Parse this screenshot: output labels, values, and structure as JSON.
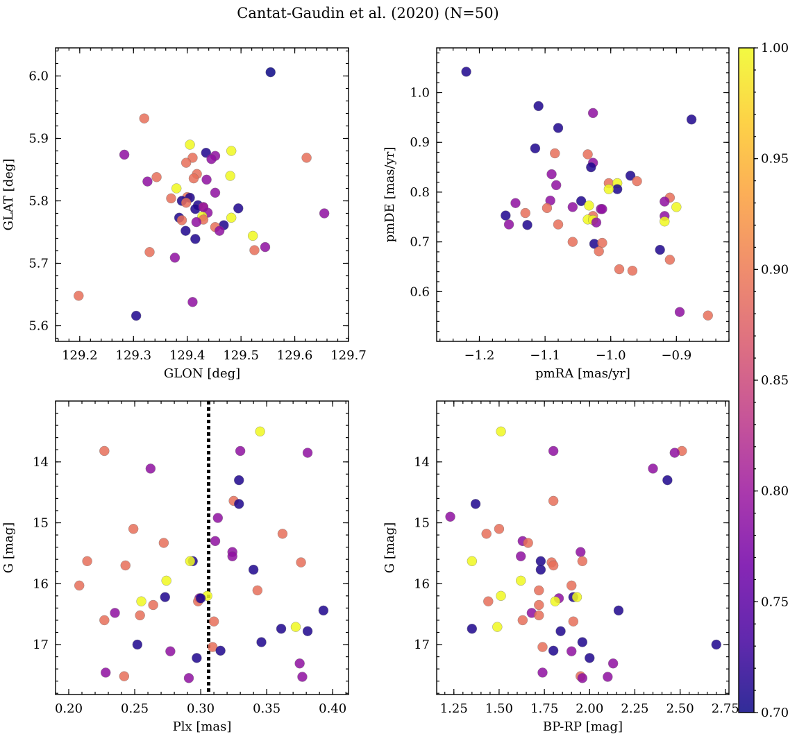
{
  "figure": {
    "title": "Cantat-Gaudin et al. (2020) (N=50)",
    "colormap": [
      "#0d0887",
      "#46039f",
      "#7201a8",
      "#9c179e",
      "#bd3786",
      "#d8576b",
      "#ed7953",
      "#fb9f3a",
      "#fdca26",
      "#f0f921"
    ]
  },
  "colorbar": {
    "min": 0.7,
    "max": 1.0,
    "ticks": [
      "0.70",
      "0.75",
      "0.80",
      "0.85",
      "0.90",
      "0.95",
      "1.00"
    ]
  },
  "chart_data": [
    {
      "type": "scatter",
      "xlabel": "GLON [deg]",
      "ylabel": "GLAT [deg]",
      "xlim": [
        129.155,
        129.7
      ],
      "ylim": [
        5.575,
        6.045
      ],
      "xticks": [
        "129.2",
        "129.3",
        "129.4",
        "129.5",
        "129.6",
        "129.7"
      ],
      "yticks": [
        "5.6",
        "5.7",
        "5.8",
        "5.9",
        "6.0"
      ],
      "y_inverted": false,
      "points": [
        {
          "x": 129.555,
          "y": 6.006,
          "c": 0.7
        },
        {
          "x": 129.32,
          "y": 5.932,
          "c": 0.89
        },
        {
          "x": 129.283,
          "y": 5.874,
          "c": 0.79
        },
        {
          "x": 129.435,
          "y": 5.877,
          "c": 0.71
        },
        {
          "x": 129.405,
          "y": 5.89,
          "c": 1.0
        },
        {
          "x": 129.482,
          "y": 5.88,
          "c": 1.0
        },
        {
          "x": 129.452,
          "y": 5.872,
          "c": 0.79
        },
        {
          "x": 129.445,
          "y": 5.867,
          "c": 0.79
        },
        {
          "x": 129.41,
          "y": 5.869,
          "c": 0.89
        },
        {
          "x": 129.398,
          "y": 5.861,
          "c": 0.89
        },
        {
          "x": 129.622,
          "y": 5.869,
          "c": 0.89
        },
        {
          "x": 129.343,
          "y": 5.838,
          "c": 0.89
        },
        {
          "x": 129.326,
          "y": 5.831,
          "c": 0.79
        },
        {
          "x": 129.418,
          "y": 5.843,
          "c": 0.89
        },
        {
          "x": 129.412,
          "y": 5.836,
          "c": 0.89
        },
        {
          "x": 129.436,
          "y": 5.834,
          "c": 0.79
        },
        {
          "x": 129.48,
          "y": 5.84,
          "c": 1.0
        },
        {
          "x": 129.38,
          "y": 5.82,
          "c": 1.0
        },
        {
          "x": 129.452,
          "y": 5.813,
          "c": 0.79
        },
        {
          "x": 129.37,
          "y": 5.804,
          "c": 0.89
        },
        {
          "x": 129.4,
          "y": 5.806,
          "c": 0.89
        },
        {
          "x": 129.405,
          "y": 5.805,
          "c": 0.71
        },
        {
          "x": 129.39,
          "y": 5.8,
          "c": 0.71
        },
        {
          "x": 129.398,
          "y": 5.797,
          "c": 0.89
        },
        {
          "x": 129.42,
          "y": 5.793,
          "c": 0.71
        },
        {
          "x": 129.43,
          "y": 5.79,
          "c": 0.89
        },
        {
          "x": 129.415,
          "y": 5.787,
          "c": 0.71
        },
        {
          "x": 129.495,
          "y": 5.788,
          "c": 0.71
        },
        {
          "x": 129.655,
          "y": 5.78,
          "c": 0.79
        },
        {
          "x": 129.438,
          "y": 5.781,
          "c": 0.79
        },
        {
          "x": 129.428,
          "y": 5.775,
          "c": 1.0
        },
        {
          "x": 129.385,
          "y": 5.773,
          "c": 0.71
        },
        {
          "x": 129.482,
          "y": 5.773,
          "c": 1.0
        },
        {
          "x": 129.39,
          "y": 5.769,
          "c": 0.89
        },
        {
          "x": 129.43,
          "y": 5.77,
          "c": 0.89
        },
        {
          "x": 129.417,
          "y": 5.766,
          "c": 0.79
        },
        {
          "x": 129.468,
          "y": 5.761,
          "c": 0.71
        },
        {
          "x": 129.452,
          "y": 5.758,
          "c": 0.89
        },
        {
          "x": 129.46,
          "y": 5.752,
          "c": 0.79
        },
        {
          "x": 129.397,
          "y": 5.752,
          "c": 0.71
        },
        {
          "x": 129.522,
          "y": 5.744,
          "c": 1.0
        },
        {
          "x": 129.415,
          "y": 5.739,
          "c": 0.71
        },
        {
          "x": 129.545,
          "y": 5.726,
          "c": 0.79
        },
        {
          "x": 129.525,
          "y": 5.721,
          "c": 0.89
        },
        {
          "x": 129.33,
          "y": 5.718,
          "c": 0.89
        },
        {
          "x": 129.377,
          "y": 5.709,
          "c": 0.79
        },
        {
          "x": 129.198,
          "y": 5.648,
          "c": 0.89
        },
        {
          "x": 129.41,
          "y": 5.638,
          "c": 0.79
        },
        {
          "x": 129.305,
          "y": 5.616,
          "c": 0.71
        },
        {
          "x": 129.43,
          "y": 5.79,
          "c": 0.79
        }
      ]
    },
    {
      "type": "scatter",
      "xlabel": "pmRA [mas/yr]",
      "ylabel": "pmDE [mas/yr]",
      "xlim": [
        -1.265,
        -0.82
      ],
      "ylim": [
        0.5,
        1.09
      ],
      "xticks": [
        "−1.2",
        "−1.1",
        "−1.0",
        "−0.9"
      ],
      "yticks": [
        "0.6",
        "0.7",
        "0.8",
        "0.9",
        "1.0"
      ],
      "y_inverted": false,
      "points": [
        {
          "x": -1.22,
          "y": 1.042,
          "c": 0.71
        },
        {
          "x": -1.11,
          "y": 0.973,
          "c": 0.71
        },
        {
          "x": -1.027,
          "y": 0.959,
          "c": 0.79
        },
        {
          "x": -0.877,
          "y": 0.946,
          "c": 0.71
        },
        {
          "x": -1.08,
          "y": 0.929,
          "c": 0.71
        },
        {
          "x": -1.115,
          "y": 0.888,
          "c": 0.71
        },
        {
          "x": -1.085,
          "y": 0.878,
          "c": 0.89
        },
        {
          "x": -1.035,
          "y": 0.876,
          "c": 0.89
        },
        {
          "x": -1.027,
          "y": 0.859,
          "c": 0.79
        },
        {
          "x": -1.03,
          "y": 0.85,
          "c": 0.71
        },
        {
          "x": -1.09,
          "y": 0.836,
          "c": 0.79
        },
        {
          "x": -0.97,
          "y": 0.833,
          "c": 0.71
        },
        {
          "x": -0.96,
          "y": 0.822,
          "c": 0.89
        },
        {
          "x": -1.003,
          "y": 0.818,
          "c": 0.89
        },
        {
          "x": -0.99,
          "y": 0.818,
          "c": 1.0
        },
        {
          "x": -1.083,
          "y": 0.814,
          "c": 0.79
        },
        {
          "x": -0.99,
          "y": 0.806,
          "c": 0.71
        },
        {
          "x": -1.003,
          "y": 0.806,
          "c": 1.0
        },
        {
          "x": -0.91,
          "y": 0.789,
          "c": 0.89
        },
        {
          "x": -1.092,
          "y": 0.783,
          "c": 0.79
        },
        {
          "x": -0.918,
          "y": 0.781,
          "c": 0.79
        },
        {
          "x": -1.045,
          "y": 0.782,
          "c": 0.71
        },
        {
          "x": -1.145,
          "y": 0.778,
          "c": 0.79
        },
        {
          "x": -1.033,
          "y": 0.773,
          "c": 1.0
        },
        {
          "x": -1.058,
          "y": 0.77,
          "c": 0.79
        },
        {
          "x": -0.9,
          "y": 0.77,
          "c": 1.0
        },
        {
          "x": -1.097,
          "y": 0.768,
          "c": 0.89
        },
        {
          "x": -1.015,
          "y": 0.766,
          "c": 0.79
        },
        {
          "x": -1.13,
          "y": 0.758,
          "c": 0.89
        },
        {
          "x": -1.16,
          "y": 0.753,
          "c": 0.71
        },
        {
          "x": -0.918,
          "y": 0.752,
          "c": 0.79
        },
        {
          "x": -1.027,
          "y": 0.752,
          "c": 0.89
        },
        {
          "x": -1.035,
          "y": 0.745,
          "c": 1.0
        },
        {
          "x": -1.027,
          "y": 0.744,
          "c": 1.0
        },
        {
          "x": -1.022,
          "y": 0.739,
          "c": 0.79
        },
        {
          "x": -0.918,
          "y": 0.741,
          "c": 1.0
        },
        {
          "x": -1.155,
          "y": 0.735,
          "c": 0.79
        },
        {
          "x": -1.127,
          "y": 0.734,
          "c": 0.71
        },
        {
          "x": -1.08,
          "y": 0.735,
          "c": 0.89
        },
        {
          "x": -1.058,
          "y": 0.7,
          "c": 0.89
        },
        {
          "x": -1.025,
          "y": 0.696,
          "c": 0.71
        },
        {
          "x": -1.013,
          "y": 0.698,
          "c": 0.89
        },
        {
          "x": -0.925,
          "y": 0.684,
          "c": 0.71
        },
        {
          "x": -1.018,
          "y": 0.681,
          "c": 0.89
        },
        {
          "x": -0.91,
          "y": 0.664,
          "c": 0.89
        },
        {
          "x": -0.987,
          "y": 0.645,
          "c": 0.89
        },
        {
          "x": -0.967,
          "y": 0.642,
          "c": 0.89
        },
        {
          "x": -0.895,
          "y": 0.559,
          "c": 0.79
        },
        {
          "x": -0.852,
          "y": 0.552,
          "c": 0.89
        },
        {
          "x": -1.013,
          "y": 0.766,
          "c": 0.79
        }
      ]
    },
    {
      "type": "scatter",
      "xlabel": "Plx [mas]",
      "ylabel": "G [mag]",
      "xlim": [
        0.19,
        0.412
      ],
      "ylim": [
        17.82,
        13.0
      ],
      "xticks": [
        "0.20",
        "0.25",
        "0.30",
        "0.35",
        "0.40"
      ],
      "yticks": [
        "14",
        "15",
        "16",
        "17"
      ],
      "y_inverted": true,
      "vline": {
        "x": 0.306,
        "style": "dotted"
      },
      "points": [
        {
          "x": 0.345,
          "y": 13.5,
          "c": 1.0
        },
        {
          "x": 0.227,
          "y": 13.82,
          "c": 0.89
        },
        {
          "x": 0.33,
          "y": 13.82,
          "c": 0.79
        },
        {
          "x": 0.381,
          "y": 13.85,
          "c": 0.79
        },
        {
          "x": 0.262,
          "y": 14.11,
          "c": 0.79
        },
        {
          "x": 0.329,
          "y": 14.3,
          "c": 0.71
        },
        {
          "x": 0.325,
          "y": 14.64,
          "c": 0.89
        },
        {
          "x": 0.329,
          "y": 14.69,
          "c": 0.71
        },
        {
          "x": 0.313,
          "y": 14.92,
          "c": 0.79
        },
        {
          "x": 0.249,
          "y": 15.1,
          "c": 0.89
        },
        {
          "x": 0.362,
          "y": 15.18,
          "c": 0.89
        },
        {
          "x": 0.272,
          "y": 15.33,
          "c": 0.89
        },
        {
          "x": 0.311,
          "y": 15.3,
          "c": 0.79
        },
        {
          "x": 0.324,
          "y": 15.48,
          "c": 0.79
        },
        {
          "x": 0.324,
          "y": 15.55,
          "c": 0.79
        },
        {
          "x": 0.214,
          "y": 15.63,
          "c": 0.89
        },
        {
          "x": 0.294,
          "y": 15.63,
          "c": 0.71
        },
        {
          "x": 0.292,
          "y": 15.63,
          "c": 1.0
        },
        {
          "x": 0.376,
          "y": 15.65,
          "c": 0.89
        },
        {
          "x": 0.243,
          "y": 15.7,
          "c": 0.89
        },
        {
          "x": 0.34,
          "y": 15.77,
          "c": 0.71
        },
        {
          "x": 0.274,
          "y": 15.95,
          "c": 1.0
        },
        {
          "x": 0.208,
          "y": 16.03,
          "c": 0.89
        },
        {
          "x": 0.343,
          "y": 16.11,
          "c": 0.89
        },
        {
          "x": 0.305,
          "y": 16.2,
          "c": 1.0
        },
        {
          "x": 0.273,
          "y": 16.22,
          "c": 0.71
        },
        {
          "x": 0.299,
          "y": 16.24,
          "c": 0.79
        },
        {
          "x": 0.255,
          "y": 16.29,
          "c": 1.0
        },
        {
          "x": 0.298,
          "y": 16.29,
          "c": 0.89
        },
        {
          "x": 0.264,
          "y": 16.35,
          "c": 0.89
        },
        {
          "x": 0.393,
          "y": 16.44,
          "c": 0.71
        },
        {
          "x": 0.235,
          "y": 16.48,
          "c": 0.79
        },
        {
          "x": 0.254,
          "y": 16.52,
          "c": 0.89
        },
        {
          "x": 0.227,
          "y": 16.6,
          "c": 0.89
        },
        {
          "x": 0.31,
          "y": 16.62,
          "c": 0.89
        },
        {
          "x": 0.372,
          "y": 16.71,
          "c": 1.0
        },
        {
          "x": 0.361,
          "y": 16.74,
          "c": 0.71
        },
        {
          "x": 0.381,
          "y": 16.78,
          "c": 0.71
        },
        {
          "x": 0.346,
          "y": 16.96,
          "c": 0.71
        },
        {
          "x": 0.252,
          "y": 17.0,
          "c": 0.71
        },
        {
          "x": 0.309,
          "y": 17.04,
          "c": 0.89
        },
        {
          "x": 0.277,
          "y": 17.11,
          "c": 0.79
        },
        {
          "x": 0.315,
          "y": 17.1,
          "c": 0.71
        },
        {
          "x": 0.297,
          "y": 17.22,
          "c": 0.71
        },
        {
          "x": 0.375,
          "y": 17.31,
          "c": 0.79
        },
        {
          "x": 0.228,
          "y": 17.46,
          "c": 0.79
        },
        {
          "x": 0.242,
          "y": 17.52,
          "c": 0.89
        },
        {
          "x": 0.377,
          "y": 17.53,
          "c": 0.79
        },
        {
          "x": 0.291,
          "y": 17.55,
          "c": 0.79
        },
        {
          "x": 0.3,
          "y": 16.24,
          "c": 0.71
        }
      ]
    },
    {
      "type": "scatter",
      "xlabel": "BP-RP [mag]",
      "ylabel": "G [mag]",
      "xlim": [
        1.155,
        2.77
      ],
      "ylim": [
        17.82,
        13.0
      ],
      "xticks": [
        "1.25",
        "1.50",
        "1.75",
        "2.00",
        "2.25",
        "2.50",
        "2.75"
      ],
      "yticks": [
        "14",
        "15",
        "16",
        "17"
      ],
      "y_inverted": true,
      "points": [
        {
          "x": 1.51,
          "y": 13.5,
          "c": 1.0
        },
        {
          "x": 1.8,
          "y": 13.82,
          "c": 0.79
        },
        {
          "x": 2.51,
          "y": 13.82,
          "c": 0.89
        },
        {
          "x": 2.47,
          "y": 13.85,
          "c": 0.79
        },
        {
          "x": 2.35,
          "y": 14.11,
          "c": 0.79
        },
        {
          "x": 2.43,
          "y": 14.3,
          "c": 0.71
        },
        {
          "x": 1.8,
          "y": 14.64,
          "c": 0.89
        },
        {
          "x": 1.37,
          "y": 14.69,
          "c": 0.71
        },
        {
          "x": 1.23,
          "y": 14.9,
          "c": 0.79
        },
        {
          "x": 1.5,
          "y": 15.1,
          "c": 0.89
        },
        {
          "x": 1.43,
          "y": 15.18,
          "c": 0.89
        },
        {
          "x": 1.63,
          "y": 15.3,
          "c": 0.79
        },
        {
          "x": 1.66,
          "y": 15.33,
          "c": 0.89
        },
        {
          "x": 1.95,
          "y": 15.48,
          "c": 0.79
        },
        {
          "x": 1.62,
          "y": 15.55,
          "c": 0.79
        },
        {
          "x": 1.35,
          "y": 15.63,
          "c": 1.0
        },
        {
          "x": 1.73,
          "y": 15.63,
          "c": 0.71
        },
        {
          "x": 1.79,
          "y": 15.65,
          "c": 0.89
        },
        {
          "x": 1.96,
          "y": 15.63,
          "c": 0.89
        },
        {
          "x": 1.8,
          "y": 15.7,
          "c": 0.89
        },
        {
          "x": 1.73,
          "y": 15.77,
          "c": 0.71
        },
        {
          "x": 1.62,
          "y": 15.95,
          "c": 1.0
        },
        {
          "x": 1.9,
          "y": 16.03,
          "c": 0.89
        },
        {
          "x": 1.72,
          "y": 16.11,
          "c": 0.89
        },
        {
          "x": 1.51,
          "y": 16.2,
          "c": 1.0
        },
        {
          "x": 1.91,
          "y": 16.22,
          "c": 0.71
        },
        {
          "x": 1.93,
          "y": 16.22,
          "c": 1.0
        },
        {
          "x": 1.83,
          "y": 16.24,
          "c": 0.79
        },
        {
          "x": 1.81,
          "y": 16.29,
          "c": 1.0
        },
        {
          "x": 1.44,
          "y": 16.29,
          "c": 0.89
        },
        {
          "x": 1.72,
          "y": 16.35,
          "c": 0.89
        },
        {
          "x": 2.16,
          "y": 16.44,
          "c": 0.71
        },
        {
          "x": 1.68,
          "y": 16.48,
          "c": 0.79
        },
        {
          "x": 1.72,
          "y": 16.52,
          "c": 0.89
        },
        {
          "x": 1.63,
          "y": 16.6,
          "c": 0.89
        },
        {
          "x": 1.91,
          "y": 16.62,
          "c": 0.89
        },
        {
          "x": 1.49,
          "y": 16.71,
          "c": 1.0
        },
        {
          "x": 1.35,
          "y": 16.74,
          "c": 0.71
        },
        {
          "x": 1.84,
          "y": 16.78,
          "c": 0.71
        },
        {
          "x": 1.96,
          "y": 16.96,
          "c": 0.71
        },
        {
          "x": 2.7,
          "y": 17.0,
          "c": 0.71
        },
        {
          "x": 1.74,
          "y": 17.04,
          "c": 0.89
        },
        {
          "x": 1.9,
          "y": 17.11,
          "c": 0.79
        },
        {
          "x": 1.8,
          "y": 17.1,
          "c": 0.71
        },
        {
          "x": 2.0,
          "y": 17.22,
          "c": 0.71
        },
        {
          "x": 2.13,
          "y": 17.31,
          "c": 0.79
        },
        {
          "x": 1.74,
          "y": 17.46,
          "c": 0.79
        },
        {
          "x": 1.95,
          "y": 17.52,
          "c": 0.89
        },
        {
          "x": 2.1,
          "y": 17.53,
          "c": 0.79
        },
        {
          "x": 1.96,
          "y": 17.55,
          "c": 0.79
        }
      ]
    }
  ]
}
